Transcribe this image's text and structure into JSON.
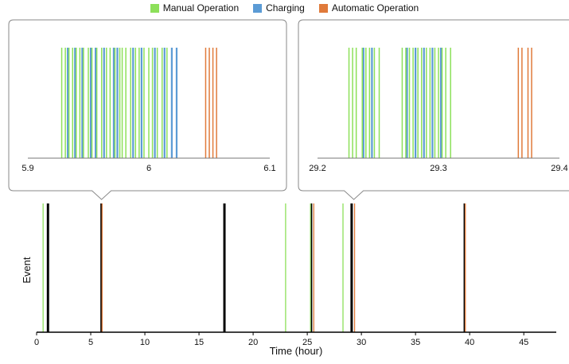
{
  "legend": [
    {
      "label": "Manual Operation",
      "color": "#8de05a"
    },
    {
      "label": "Charging",
      "color": "#5b9bd5"
    },
    {
      "label": "Automatic Operation",
      "color": "#e07a3a"
    }
  ],
  "chart_data": [
    {
      "type": "event",
      "title": "",
      "xlabel": "Time (hour)",
      "ylabel": "Event",
      "xlim": [
        0,
        48
      ],
      "xticks": [
        0,
        5,
        10,
        15,
        20,
        25,
        30,
        35,
        40,
        45
      ],
      "grid": false,
      "legend_position": "top",
      "events": [
        {
          "x": 0.6,
          "type": "manual"
        },
        {
          "x": 1.0,
          "type": "black"
        },
        {
          "x": 1.1,
          "type": "black"
        },
        {
          "x": 5.95,
          "type": "black"
        },
        {
          "x": 6.0,
          "type": "black"
        },
        {
          "x": 6.05,
          "type": "automatic"
        },
        {
          "x": 17.3,
          "type": "black"
        },
        {
          "x": 17.4,
          "type": "black"
        },
        {
          "x": 23.0,
          "type": "manual"
        },
        {
          "x": 25.3,
          "type": "manual"
        },
        {
          "x": 25.4,
          "type": "black"
        },
        {
          "x": 25.6,
          "type": "automatic"
        },
        {
          "x": 28.3,
          "type": "manual"
        },
        {
          "x": 29.05,
          "type": "black"
        },
        {
          "x": 29.15,
          "type": "black"
        },
        {
          "x": 29.37,
          "type": "automatic"
        },
        {
          "x": 39.5,
          "type": "black"
        },
        {
          "x": 39.6,
          "type": "automatic"
        }
      ]
    },
    {
      "type": "event",
      "zoom_of": 6.0,
      "xlim": [
        5.9,
        6.1
      ],
      "xticks": [
        5.9,
        6,
        6.1
      ],
      "manual": [
        5.928,
        5.931,
        5.934,
        5.937,
        5.94,
        5.943,
        5.946,
        5.95,
        5.953,
        5.957,
        5.961,
        5.965,
        5.968,
        5.972,
        5.976,
        5.978,
        5.981,
        5.985,
        5.989,
        5.992,
        5.996,
        6.0,
        6.003,
        6.007,
        6.011,
        6.015
      ],
      "charging": [
        5.933,
        5.939,
        5.945,
        5.952,
        5.956,
        5.963,
        5.971,
        5.974,
        5.987,
        5.994,
        6.005,
        6.013,
        6.019,
        6.023
      ],
      "automatic": [
        6.047,
        6.05,
        6.053,
        6.056
      ]
    },
    {
      "type": "event",
      "zoom_of": 29.3,
      "xlim": [
        29.2,
        29.4
      ],
      "xticks": [
        29.2,
        29.3,
        29.4
      ],
      "xtick_labels": [
        "29.2",
        "29.3",
        "29.4"
      ],
      "manual": [
        29.226,
        29.229,
        29.232,
        29.237,
        29.24,
        29.243,
        29.247,
        29.251,
        29.27,
        29.273,
        29.276,
        29.279,
        29.283,
        29.286,
        29.29,
        29.293,
        29.297,
        29.3,
        29.303,
        29.306,
        29.31
      ],
      "charging": [
        29.238,
        29.245,
        29.274,
        29.281,
        29.288,
        29.295,
        29.302
      ],
      "automatic": [
        29.366,
        29.369,
        29.374,
        29.377
      ]
    }
  ]
}
